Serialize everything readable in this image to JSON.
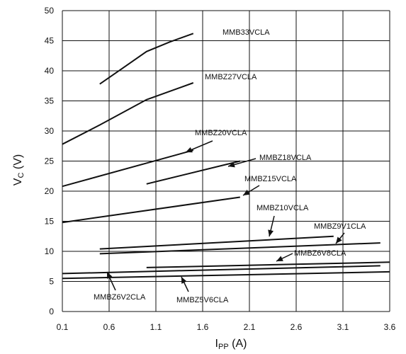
{
  "chart_data": {
    "type": "line",
    "xlabel": {
      "main": "I",
      "sub": "PP",
      "unit": " (A)"
    },
    "ylabel": {
      "main": "V",
      "sub": "C",
      "unit": " (V)"
    },
    "xlim": [
      0.1,
      3.6
    ],
    "ylim": [
      0,
      50
    ],
    "x_ticks": [
      "0.1",
      "0.6",
      "1.1",
      "1.6",
      "2.1",
      "2.6",
      "3.1",
      "3.6"
    ],
    "y_ticks": [
      "0",
      "5",
      "10",
      "15",
      "20",
      "25",
      "30",
      "35",
      "40",
      "45",
      "50"
    ],
    "grid": true,
    "series": [
      {
        "name": "MMB33VCLA",
        "x": [
          0.5,
          0.75,
          1.0,
          1.25,
          1.5
        ],
        "y": [
          37.8,
          40.5,
          43.2,
          44.8,
          46.2
        ]
      },
      {
        "name": "MMBZ27VCLA",
        "x": [
          0.1,
          0.5,
          1.0,
          1.5
        ],
        "y": [
          27.8,
          31.0,
          35.2,
          38.0
        ]
      },
      {
        "name": "MMBZ20VCLA",
        "x": [
          0.1,
          1.5
        ],
        "y": [
          20.8,
          26.8
        ]
      },
      {
        "name": "MMBZ18VCLA",
        "x": [
          1.0,
          2.0
        ],
        "y": [
          21.2,
          25.0
        ]
      },
      {
        "name": "MMBZ15VCLA",
        "x": [
          0.1,
          2.0
        ],
        "y": [
          14.8,
          19.0
        ]
      },
      {
        "name": "MMBZ10VCLA",
        "x": [
          0.5,
          3.0
        ],
        "y": [
          10.4,
          12.5
        ]
      },
      {
        "name": "MMBZ9V1CLA",
        "x": [
          0.5,
          3.5
        ],
        "y": [
          9.6,
          11.4
        ]
      },
      {
        "name": "MMBZ6V8CLA",
        "x": [
          1.0,
          3.6
        ],
        "y": [
          7.3,
          8.2
        ]
      },
      {
        "name": "MMBZ6V2CLA",
        "x": [
          0.1,
          3.5
        ],
        "y": [
          6.3,
          7.6
        ]
      },
      {
        "name": "MMBZ5V6CLA",
        "x": [
          0.1,
          3.6
        ],
        "y": [
          5.5,
          6.6
        ]
      }
    ]
  }
}
